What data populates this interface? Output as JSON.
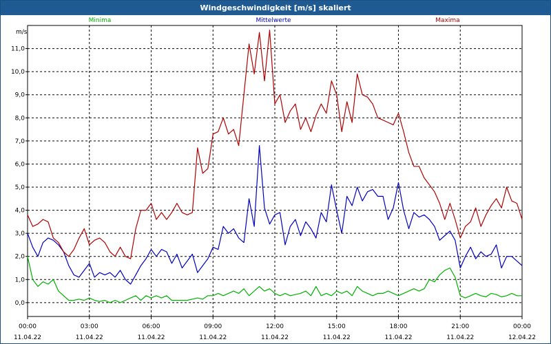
{
  "window": {
    "title": "Windgeschwindigkeit [m/s] skaliert"
  },
  "chart_data": {
    "type": "line",
    "title": "Windgeschwindigkeit [m/s] skaliert",
    "ylabel": "m/s",
    "xlabel": "",
    "ylim": [
      -0.6,
      12.0
    ],
    "xlim": [
      0,
      24
    ],
    "grid": true,
    "legend_position": "top",
    "y_ticks": [
      "0,0",
      "1,0",
      "2,0",
      "3,0",
      "4,0",
      "5,0",
      "6,0",
      "7,0",
      "8,0",
      "9,0",
      "10,0",
      "11,0"
    ],
    "x_ticks": [
      {
        "time": "00:00",
        "date": "11.04.22"
      },
      {
        "time": "03:00",
        "date": "11.04.22"
      },
      {
        "time": "06:00",
        "date": "11.04.22"
      },
      {
        "time": "09:00",
        "date": "11.04.22"
      },
      {
        "time": "12:00",
        "date": "11.04.22"
      },
      {
        "time": "15:00",
        "date": "11.04.22"
      },
      {
        "time": "18:00",
        "date": "11.04.22"
      },
      {
        "time": "21:00",
        "date": "11.04.22"
      },
      {
        "time": "00:00",
        "date": "12.04.22"
      }
    ],
    "series": [
      {
        "name": "Minima",
        "color": "#00b000",
        "x": [
          0,
          0.25,
          0.5,
          0.75,
          1,
          1.25,
          1.5,
          1.75,
          2,
          2.25,
          2.5,
          2.75,
          3,
          3.25,
          3.5,
          3.75,
          4,
          4.25,
          4.5,
          4.75,
          5,
          5.25,
          5.5,
          5.75,
          6,
          6.25,
          6.5,
          6.75,
          7,
          7.25,
          7.5,
          7.75,
          8,
          8.25,
          8.5,
          8.75,
          9,
          9.25,
          9.5,
          9.75,
          10,
          10.25,
          10.5,
          10.75,
          11,
          11.25,
          11.5,
          11.75,
          12,
          12.25,
          12.5,
          12.75,
          13,
          13.25,
          13.5,
          13.75,
          14,
          14.25,
          14.5,
          14.75,
          15,
          15.25,
          15.5,
          15.75,
          16,
          16.25,
          16.5,
          16.75,
          17,
          17.25,
          17.5,
          17.75,
          18,
          18.25,
          18.5,
          18.75,
          19,
          19.25,
          19.5,
          19.75,
          20,
          20.25,
          20.5,
          20.75,
          21,
          21.25,
          21.5,
          21.75,
          22,
          22.25,
          22.5,
          22.75,
          23,
          23.25,
          23.5,
          23.75,
          24
        ],
        "values": [
          2.0,
          1.0,
          0.7,
          0.9,
          0.8,
          1.0,
          0.5,
          0.3,
          0.1,
          0.1,
          0.15,
          0.1,
          0.2,
          0.1,
          0.05,
          0.1,
          0.0,
          0.1,
          0.0,
          0.1,
          0.2,
          0.3,
          0.1,
          0.3,
          0.2,
          0.3,
          0.2,
          0.3,
          0.1,
          0.1,
          0.1,
          0.1,
          0.15,
          0.2,
          0.15,
          0.3,
          0.3,
          0.4,
          0.3,
          0.4,
          0.5,
          0.4,
          0.6,
          0.3,
          0.5,
          0.7,
          0.5,
          0.6,
          0.4,
          0.3,
          0.4,
          0.3,
          0.35,
          0.4,
          0.5,
          0.3,
          0.7,
          0.3,
          0.4,
          0.3,
          0.5,
          0.4,
          0.5,
          0.3,
          0.7,
          0.5,
          0.4,
          0.3,
          0.4,
          0.4,
          0.5,
          0.4,
          0.3,
          0.4,
          0.5,
          0.6,
          0.5,
          0.6,
          1.0,
          0.9,
          1.2,
          1.4,
          1.5,
          1.1,
          0.3,
          0.2,
          0.3,
          0.4,
          0.3,
          0.25,
          0.4,
          0.35,
          0.25,
          0.3,
          0.4,
          0.3,
          0.3
        ]
      },
      {
        "name": "Mittelwerte",
        "color": "#0000c0",
        "x": [
          0,
          0.25,
          0.5,
          0.75,
          1,
          1.25,
          1.5,
          1.75,
          2,
          2.25,
          2.5,
          2.75,
          3,
          3.25,
          3.5,
          3.75,
          4,
          4.25,
          4.5,
          4.75,
          5,
          5.25,
          5.5,
          5.75,
          6,
          6.25,
          6.5,
          6.75,
          7,
          7.25,
          7.5,
          7.75,
          8,
          8.25,
          8.5,
          8.75,
          9,
          9.25,
          9.5,
          9.75,
          10,
          10.25,
          10.5,
          10.75,
          11,
          11.25,
          11.5,
          11.75,
          12,
          12.25,
          12.5,
          12.75,
          13,
          13.25,
          13.5,
          13.75,
          14,
          14.25,
          14.5,
          14.75,
          15,
          15.25,
          15.5,
          15.75,
          16,
          16.25,
          16.5,
          16.75,
          17,
          17.25,
          17.5,
          17.75,
          18,
          18.25,
          18.5,
          18.75,
          19,
          19.25,
          19.5,
          19.75,
          20,
          20.25,
          20.5,
          20.75,
          21,
          21.25,
          21.5,
          21.75,
          22,
          22.25,
          22.5,
          22.75,
          23,
          23.25,
          23.5,
          23.75,
          24
        ],
        "values": [
          3.0,
          2.4,
          2.0,
          2.6,
          2.8,
          2.7,
          2.5,
          2.2,
          1.6,
          1.2,
          1.1,
          1.4,
          1.7,
          1.1,
          1.3,
          1.2,
          1.3,
          1.1,
          1.4,
          1.0,
          0.8,
          1.2,
          1.6,
          1.9,
          2.3,
          2.0,
          2.3,
          2.2,
          1.7,
          2.1,
          1.5,
          1.8,
          2.1,
          1.3,
          1.6,
          1.9,
          2.4,
          2.3,
          3.3,
          3.0,
          3.2,
          2.8,
          2.6,
          4.5,
          3.3,
          6.8,
          4.1,
          3.4,
          3.8,
          3.9,
          2.5,
          3.3,
          3.6,
          2.9,
          3.5,
          3.2,
          2.8,
          3.9,
          3.5,
          5.1,
          4.0,
          3.0,
          4.6,
          4.2,
          5.0,
          4.4,
          4.8,
          4.9,
          4.6,
          4.6,
          3.6,
          4.1,
          5.2,
          4.0,
          3.2,
          3.9,
          3.7,
          3.8,
          3.6,
          3.3,
          2.7,
          2.9,
          3.1,
          2.7,
          1.5,
          2.0,
          2.4,
          1.9,
          2.2,
          2.0,
          2.1,
          2.5,
          1.5,
          2.0,
          2.0,
          1.8,
          1.6
        ]
      },
      {
        "name": "Maxima",
        "color": "#b00000",
        "x": [
          0,
          0.25,
          0.5,
          0.75,
          1,
          1.25,
          1.5,
          1.75,
          2,
          2.25,
          2.5,
          2.75,
          3,
          3.25,
          3.5,
          3.75,
          4,
          4.25,
          4.5,
          4.75,
          5,
          5.25,
          5.5,
          5.75,
          6,
          6.25,
          6.5,
          6.75,
          7,
          7.25,
          7.5,
          7.75,
          8,
          8.25,
          8.5,
          8.75,
          9,
          9.25,
          9.5,
          9.75,
          10,
          10.25,
          10.5,
          10.75,
          11,
          11.25,
          11.5,
          11.75,
          12,
          12.25,
          12.5,
          12.75,
          13,
          13.25,
          13.5,
          13.75,
          14,
          14.25,
          14.5,
          14.75,
          15,
          15.25,
          15.5,
          15.75,
          16,
          16.25,
          16.5,
          16.75,
          17,
          17.25,
          17.5,
          17.75,
          18,
          18.25,
          18.5,
          18.75,
          19,
          19.25,
          19.5,
          19.75,
          20,
          20.25,
          20.5,
          20.75,
          21,
          21.25,
          21.5,
          21.75,
          22,
          22.25,
          22.5,
          22.75,
          23,
          23.25,
          23.5,
          23.75,
          24
        ],
        "values": [
          3.8,
          3.3,
          3.4,
          3.6,
          3.5,
          2.8,
          2.6,
          2.2,
          2.0,
          2.3,
          2.8,
          3.2,
          2.5,
          2.7,
          2.8,
          2.6,
          2.2,
          2.0,
          2.4,
          2.0,
          1.9,
          3.2,
          4.0,
          4.0,
          4.3,
          3.6,
          3.9,
          3.6,
          3.9,
          4.3,
          3.9,
          3.8,
          3.9,
          6.7,
          5.6,
          5.8,
          7.3,
          7.4,
          8.0,
          7.3,
          7.5,
          6.8,
          9.0,
          11.2,
          9.9,
          11.7,
          9.6,
          11.8,
          8.6,
          9.0,
          7.8,
          8.3,
          8.6,
          7.5,
          8.0,
          7.4,
          8.1,
          8.6,
          8.2,
          9.6,
          9.0,
          7.4,
          8.7,
          7.8,
          9.9,
          9.0,
          8.9,
          8.6,
          8.0,
          7.9,
          7.8,
          7.7,
          8.2,
          7.4,
          6.5,
          5.9,
          5.9,
          5.4,
          5.1,
          4.8,
          4.3,
          3.6,
          4.3,
          3.6,
          2.8,
          3.3,
          3.5,
          4.1,
          3.3,
          3.8,
          4.2,
          4.5,
          4.1,
          5.0,
          4.4,
          4.3,
          3.6
        ]
      }
    ]
  }
}
